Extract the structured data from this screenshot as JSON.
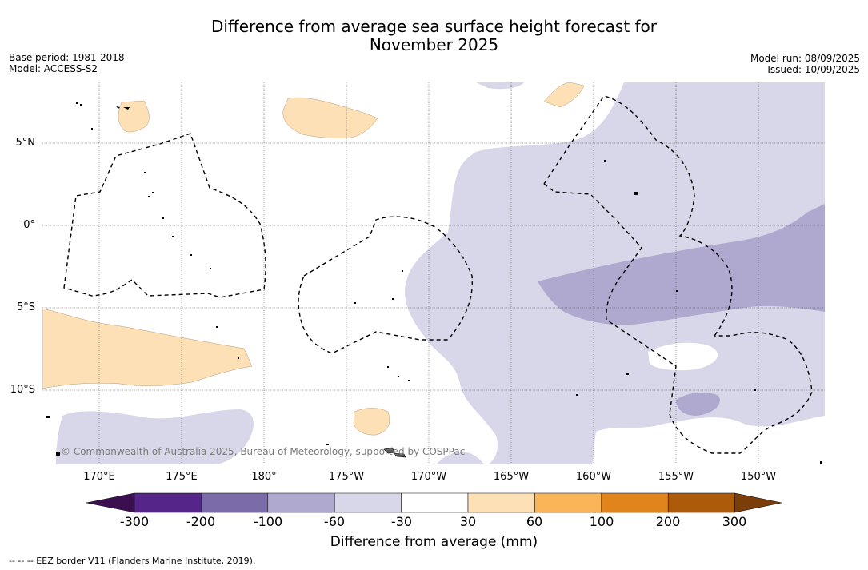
{
  "title_line1": "Difference from average sea surface height forecast for",
  "title_line2": "November 2025",
  "base_period": "Base period: 1981-2018",
  "model": "Model: ACCESS-S2",
  "model_run": "Model run: 08/09/2025",
  "issued": "Issued: 10/09/2025",
  "lat_labels": [
    "5°N",
    "0°",
    "5°S",
    "10°S"
  ],
  "lon_labels": [
    "170°E",
    "175°E",
    "180°",
    "175°W",
    "170°W",
    "165°W",
    "160°W",
    "155°W",
    "150°W"
  ],
  "copyright": "© Commonwealth of Australia 2025, Bureau of Meteorology, supported by COSPPac",
  "colorbar": {
    "title": "Difference from average (mm)",
    "ticks": [
      "-300",
      "-200",
      "-100",
      "-60",
      "-30",
      "30",
      "60",
      "100",
      "200",
      "300"
    ],
    "colors": {
      "below_min": "#3b0f4f",
      "neg300_neg200": "#56258a",
      "neg200_neg100": "#7b6ca9",
      "neg100_neg60": "#afa9d0",
      "neg60_neg30": "#d7d7e9",
      "neg30_30": "#ffffff",
      "pos30_60": "#fde0b5",
      "pos60_100": "#fab559",
      "pos100_200": "#e1841b",
      "pos200_300": "#ae5a0b",
      "above_max": "#7b3d0a"
    }
  },
  "footnote": "--  --  -- EEZ border V11 (Flanders Marine Institute, 2019)."
}
